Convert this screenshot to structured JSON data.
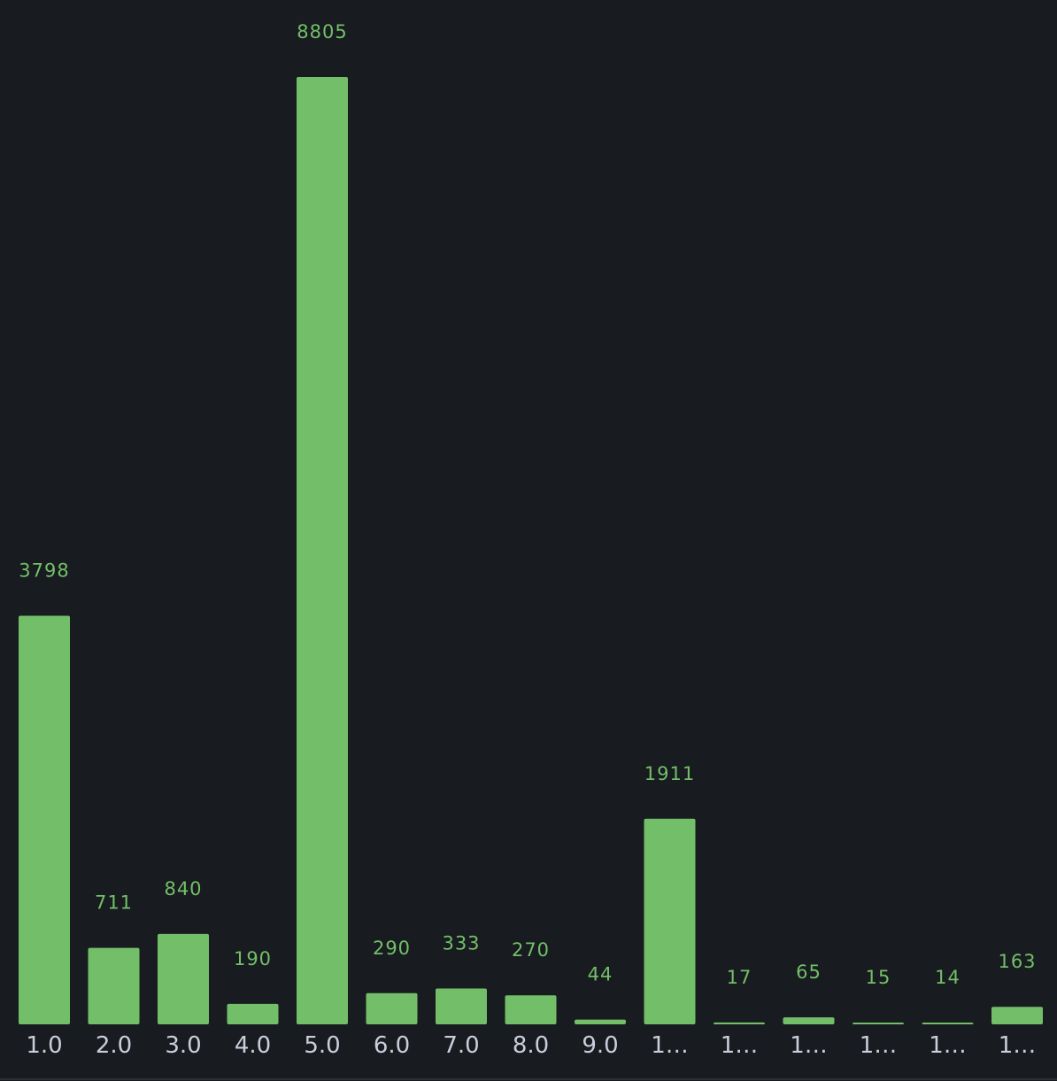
{
  "chart_data": {
    "type": "bar",
    "categories": [
      "1.0",
      "2.0",
      "3.0",
      "4.0",
      "5.0",
      "6.0",
      "7.0",
      "8.0",
      "9.0",
      "1…",
      "1…",
      "1…",
      "1…",
      "1…",
      "1…"
    ],
    "values": [
      3798,
      711,
      840,
      190,
      8805,
      290,
      333,
      270,
      44,
      1911,
      17,
      65,
      15,
      14,
      163
    ],
    "color": "#73bf69"
  }
}
